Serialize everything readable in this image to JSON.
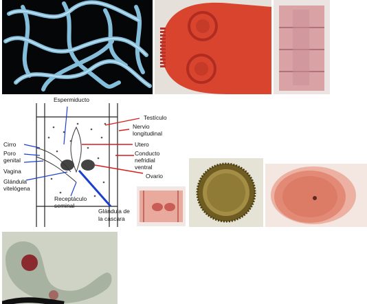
{
  "figure": {
    "panels": [
      {
        "id": "whole-worm-photo",
        "content": "tapeworm specimen"
      },
      {
        "id": "scolex-photo",
        "content": "stained scolex"
      },
      {
        "id": "proglottid-chain-photo",
        "content": "proglottids"
      },
      {
        "id": "mature-proglottid-diagram",
        "content": "labeled diagram"
      },
      {
        "id": "proglottid-detail-photo",
        "content": "stained proglottid"
      },
      {
        "id": "egg-photo",
        "content": "egg micrograph"
      },
      {
        "id": "cysticercus-photo",
        "content": "stained cysticercus"
      },
      {
        "id": "larva-photo",
        "content": "unstained larva"
      }
    ],
    "diagram_labels": {
      "espermiducto": "Espermiducto",
      "testiculo": "Testículo",
      "nervio": "Nervio",
      "longitudinal": "longitudinal",
      "utero": "Utero",
      "conducto": "Conducto",
      "nefridial": "nefridial",
      "ventral": "ventral",
      "ovario": "Ovario",
      "cirro": "Cirro",
      "poro": "Poro",
      "genital": "genital",
      "vagina": "Vagina",
      "glandula_vit_1": "Glándula",
      "glandula_vit_2": "vitelógena",
      "receptaculo_1": "Receptáculo",
      "receptaculo_2": "seminal",
      "glandula_cas_1": "Glándula de",
      "glandula_cas_2": "la cáscara"
    },
    "colors": {
      "stain_red": "#d8442e",
      "stain_pink": "#e9a99c",
      "worm_blue": "#8cc8e6",
      "egg_brown": "#7a6a28",
      "arrow_red": "#d81c1c",
      "arrow_blue": "#1a3fd0"
    }
  }
}
